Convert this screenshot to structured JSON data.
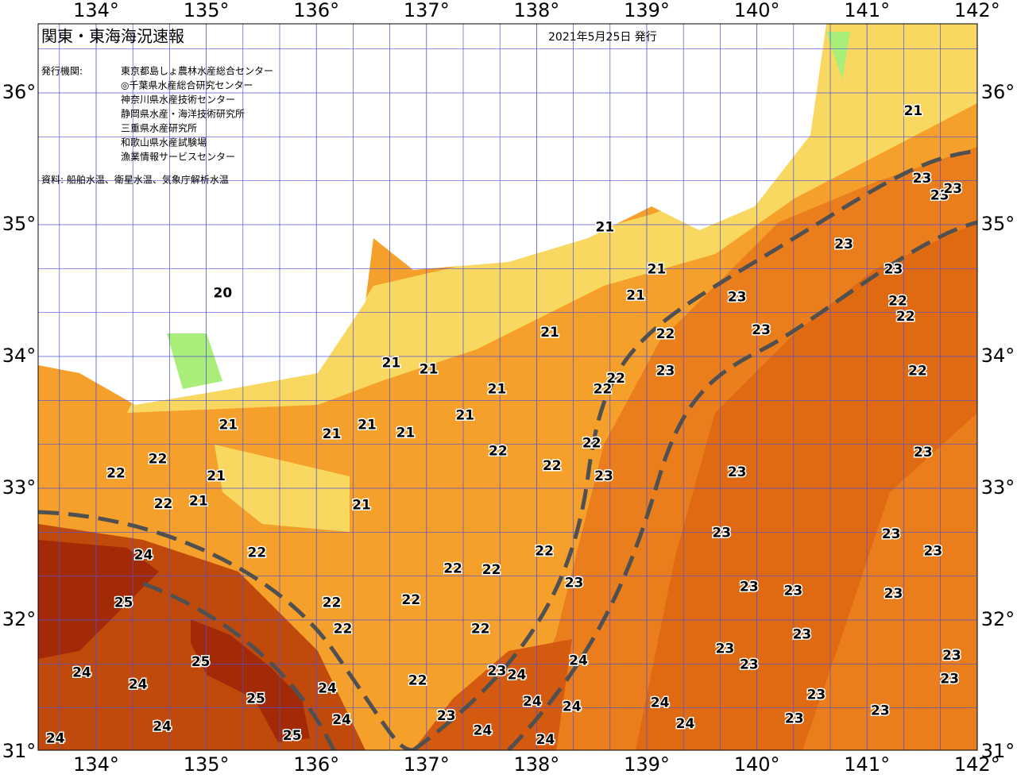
{
  "header": {
    "title": "関東・東海海況速報",
    "date": "2021年5月25日 発行",
    "issuer_label": "発行機関:",
    "issuers": [
      "東京都島しょ農林水産総合センター",
      "◎千葉県水産総合研究センター",
      "神奈川県水産技術センター",
      "静岡県水産・海洋技術研究所",
      "三重県水産研究所",
      "和歌山県水産試験場",
      "漁業情報サービスセンター"
    ],
    "source": "資料: 船舶水温、衛星水温、気象庁解析水温"
  },
  "map": {
    "lon_ticks": [
      {
        "value": 134,
        "label": "134°"
      },
      {
        "value": 135,
        "label": "135°"
      },
      {
        "value": 136,
        "label": "136°"
      },
      {
        "value": 137,
        "label": "137°"
      },
      {
        "value": 138,
        "label": "138°"
      },
      {
        "value": 139,
        "label": "139°"
      },
      {
        "value": 140,
        "label": "140°"
      },
      {
        "value": 141,
        "label": "141°"
      },
      {
        "value": 142,
        "label": "142°"
      }
    ],
    "lat_ticks": [
      {
        "value": 36,
        "label": "36°"
      },
      {
        "value": 35,
        "label": "35°"
      },
      {
        "value": 34,
        "label": "34°"
      },
      {
        "value": 33,
        "label": "33°"
      },
      {
        "value": 32,
        "label": "32°"
      },
      {
        "value": 31,
        "label": "31°"
      }
    ],
    "temperature_labels": [
      {
        "value": 21,
        "lon": 141.42,
        "lat": 35.86
      },
      {
        "value": 23,
        "lon": 141.5,
        "lat": 35.35
      },
      {
        "value": 23,
        "lon": 141.66,
        "lat": 35.22
      },
      {
        "value": 23,
        "lon": 141.78,
        "lat": 35.27
      },
      {
        "value": 23,
        "lon": 140.79,
        "lat": 34.85
      },
      {
        "value": 23,
        "lon": 141.24,
        "lat": 34.66
      },
      {
        "value": 22,
        "lon": 141.28,
        "lat": 34.42
      },
      {
        "value": 22,
        "lon": 141.35,
        "lat": 34.3
      },
      {
        "value": 22,
        "lon": 141.46,
        "lat": 33.89
      },
      {
        "value": 23,
        "lon": 141.51,
        "lat": 33.27
      },
      {
        "value": 23,
        "lon": 141.22,
        "lat": 32.65
      },
      {
        "value": 23,
        "lon": 141.6,
        "lat": 32.52
      },
      {
        "value": 23,
        "lon": 141.24,
        "lat": 32.2
      },
      {
        "value": 23,
        "lon": 141.77,
        "lat": 31.73
      },
      {
        "value": 23,
        "lon": 141.75,
        "lat": 31.55
      },
      {
        "value": 23,
        "lon": 141.12,
        "lat": 31.31
      },
      {
        "value": 23,
        "lon": 140.54,
        "lat": 31.43
      },
      {
        "value": 23,
        "lon": 140.34,
        "lat": 31.25
      },
      {
        "value": 23,
        "lon": 140.41,
        "lat": 31.89
      },
      {
        "value": 23,
        "lon": 140.33,
        "lat": 32.22
      },
      {
        "value": 23,
        "lon": 139.93,
        "lat": 32.25
      },
      {
        "value": 23,
        "lon": 139.71,
        "lat": 31.78
      },
      {
        "value": 23,
        "lon": 139.93,
        "lat": 31.66
      },
      {
        "value": 23,
        "lon": 139.68,
        "lat": 32.66
      },
      {
        "value": 23,
        "lon": 139.82,
        "lat": 33.12
      },
      {
        "value": 23,
        "lon": 140.04,
        "lat": 34.2
      },
      {
        "value": 23,
        "lon": 139.82,
        "lat": 34.45
      },
      {
        "value": 23,
        "lon": 139.17,
        "lat": 33.89
      },
      {
        "value": 22,
        "lon": 139.17,
        "lat": 34.17
      },
      {
        "value": 21,
        "lon": 138.9,
        "lat": 34.46
      },
      {
        "value": 21,
        "lon": 139.09,
        "lat": 34.66
      },
      {
        "value": 21,
        "lon": 138.62,
        "lat": 34.98
      },
      {
        "value": 21,
        "lon": 138.12,
        "lat": 34.18
      },
      {
        "value": 22,
        "lon": 138.72,
        "lat": 33.83
      },
      {
        "value": 22,
        "lon": 138.6,
        "lat": 33.75
      },
      {
        "value": 22,
        "lon": 138.5,
        "lat": 33.34
      },
      {
        "value": 23,
        "lon": 138.61,
        "lat": 33.09
      },
      {
        "value": 22,
        "lon": 138.14,
        "lat": 33.17
      },
      {
        "value": 22,
        "lon": 138.07,
        "lat": 32.52
      },
      {
        "value": 23,
        "lon": 138.34,
        "lat": 32.28
      },
      {
        "value": 22,
        "lon": 137.65,
        "lat": 33.28
      },
      {
        "value": 21,
        "lon": 137.64,
        "lat": 33.75
      },
      {
        "value": 21,
        "lon": 137.35,
        "lat": 33.55
      },
      {
        "value": 21,
        "lon": 137.02,
        "lat": 33.9
      },
      {
        "value": 21,
        "lon": 136.68,
        "lat": 33.95
      },
      {
        "value": 21,
        "lon": 136.81,
        "lat": 33.42
      },
      {
        "value": 21,
        "lon": 136.46,
        "lat": 33.48
      },
      {
        "value": 21,
        "lon": 136.14,
        "lat": 33.41
      },
      {
        "value": 21,
        "lon": 136.41,
        "lat": 32.87
      },
      {
        "value": 21,
        "lon": 135.2,
        "lat": 33.48
      },
      {
        "value": 21,
        "lon": 135.09,
        "lat": 33.09
      },
      {
        "value": 22,
        "lon": 134.56,
        "lat": 33.22
      },
      {
        "value": 22,
        "lon": 134.18,
        "lat": 33.11
      },
      {
        "value": 22,
        "lon": 134.61,
        "lat": 32.88
      },
      {
        "value": 21,
        "lon": 134.93,
        "lat": 32.9
      },
      {
        "value": 24,
        "lon": 134.43,
        "lat": 32.49
      },
      {
        "value": 22,
        "lon": 135.46,
        "lat": 32.51
      },
      {
        "value": 25,
        "lon": 134.25,
        "lat": 32.13
      },
      {
        "value": 25,
        "lon": 134.95,
        "lat": 31.68
      },
      {
        "value": 25,
        "lon": 135.45,
        "lat": 31.4
      },
      {
        "value": 24,
        "lon": 133.87,
        "lat": 31.6
      },
      {
        "value": 24,
        "lon": 134.38,
        "lat": 31.51
      },
      {
        "value": 24,
        "lon": 136.1,
        "lat": 31.48
      },
      {
        "value": 24,
        "lon": 136.23,
        "lat": 31.24
      },
      {
        "value": 25,
        "lon": 135.78,
        "lat": 31.12
      },
      {
        "value": 24,
        "lon": 134.6,
        "lat": 31.19
      },
      {
        "value": 24,
        "lon": 133.63,
        "lat": 31.1
      },
      {
        "value": 22,
        "lon": 136.86,
        "lat": 32.15
      },
      {
        "value": 22,
        "lon": 136.14,
        "lat": 32.13
      },
      {
        "value": 22,
        "lon": 136.24,
        "lat": 31.93
      },
      {
        "value": 22,
        "lon": 137.24,
        "lat": 32.39
      },
      {
        "value": 22,
        "lon": 137.59,
        "lat": 32.38
      },
      {
        "value": 22,
        "lon": 137.49,
        "lat": 31.93
      },
      {
        "value": 22,
        "lon": 136.92,
        "lat": 31.54
      },
      {
        "value": 23,
        "lon": 137.18,
        "lat": 31.27
      },
      {
        "value": 23,
        "lon": 137.64,
        "lat": 31.61
      },
      {
        "value": 24,
        "lon": 137.82,
        "lat": 31.58
      },
      {
        "value": 24,
        "lon": 138.38,
        "lat": 31.69
      },
      {
        "value": 24,
        "lon": 137.96,
        "lat": 31.38
      },
      {
        "value": 24,
        "lon": 138.32,
        "lat": 31.34
      },
      {
        "value": 24,
        "lon": 137.51,
        "lat": 31.16
      },
      {
        "value": 24,
        "lon": 138.08,
        "lat": 31.09
      },
      {
        "value": 24,
        "lon": 139.12,
        "lat": 31.37
      },
      {
        "value": 24,
        "lon": 139.35,
        "lat": 31.21
      },
      {
        "value": 20,
        "lon": 135.15,
        "lat": 34.48
      }
    ]
  }
}
